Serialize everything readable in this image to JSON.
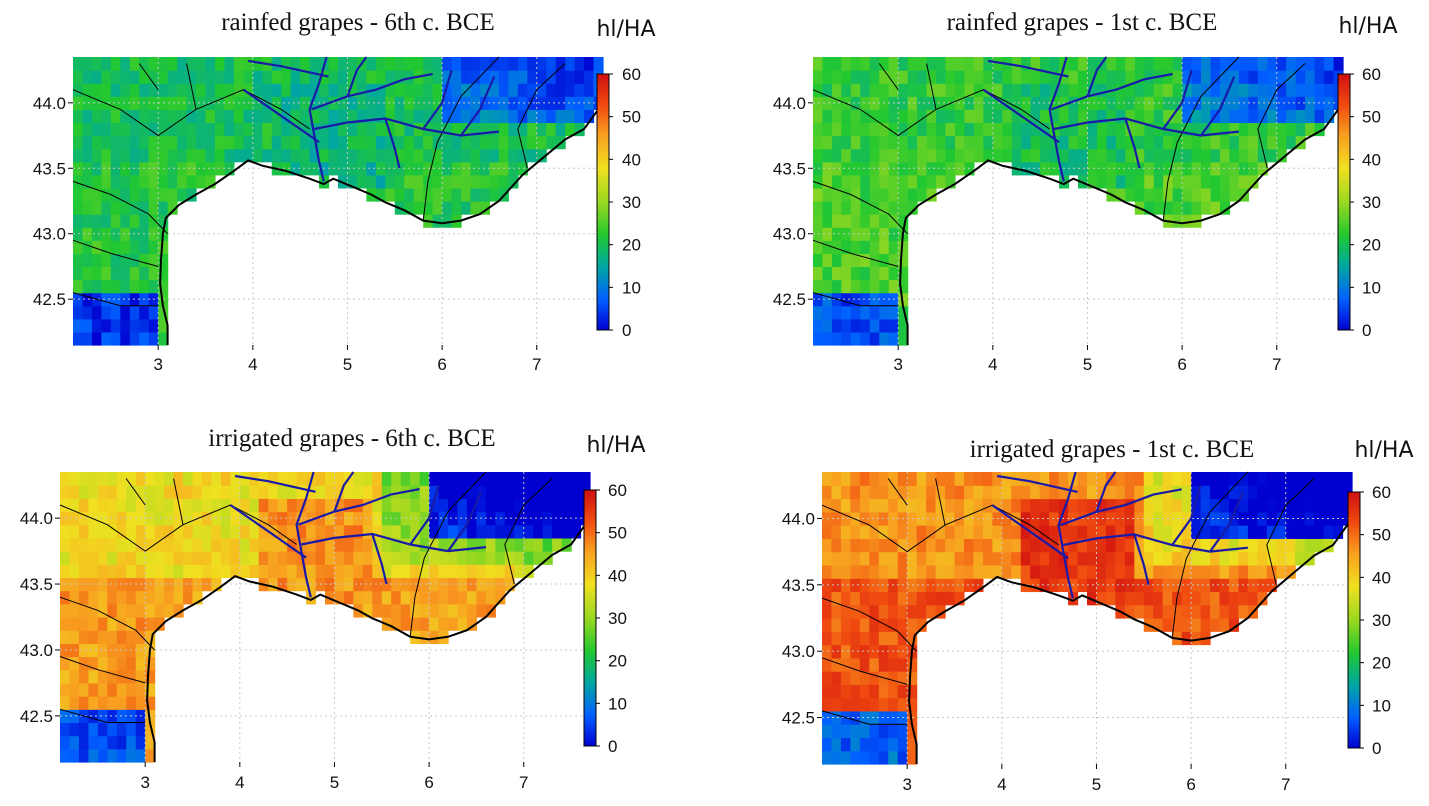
{
  "chart_data": [
    {
      "type": "heatmap",
      "title": "rainfed grapes - 6th c. BCE",
      "colorbar_label": "hl/HA",
      "colorbar_range": [
        0,
        60
      ],
      "colorbar_ticks": [
        "0",
        "10",
        "20",
        "30",
        "40",
        "50",
        "60"
      ],
      "xlim": [
        2.1,
        7.7
      ],
      "ylim": [
        42.15,
        44.35
      ],
      "x_ticks": [
        "3",
        "4",
        "5",
        "6",
        "7"
      ],
      "y_ticks": [
        "42.5",
        "43.0",
        "43.5",
        "44.0"
      ],
      "grid": true,
      "value_summary": {
        "coast_lowland": 22,
        "inland_west": 20,
        "rhone_valley": 18,
        "alps_northeast": 3,
        "pyrenees_southwest": 4
      }
    },
    {
      "type": "heatmap",
      "title": "rainfed grapes - 1st c. BCE",
      "colorbar_label": "hl/HA",
      "colorbar_range": [
        0,
        60
      ],
      "colorbar_ticks": [
        "0",
        "10",
        "20",
        "30",
        "40",
        "50",
        "60"
      ],
      "xlim": [
        2.1,
        7.7
      ],
      "ylim": [
        42.15,
        44.35
      ],
      "x_ticks": [
        "3",
        "4",
        "5",
        "6",
        "7"
      ],
      "y_ticks": [
        "42.5",
        "43.0",
        "43.5",
        "44.0"
      ],
      "grid": true,
      "value_summary": {
        "coast_lowland": 25,
        "inland_west": 23,
        "rhone_valley": 20,
        "alps_northeast": 4,
        "pyrenees_southwest": 6
      }
    },
    {
      "type": "heatmap",
      "title": "irrigated grapes - 6th c. BCE",
      "colorbar_label": "hl/HA",
      "colorbar_range": [
        0,
        60
      ],
      "colorbar_ticks": [
        "0",
        "10",
        "20",
        "30",
        "40",
        "50",
        "60"
      ],
      "xlim": [
        2.1,
        7.7
      ],
      "ylim": [
        42.15,
        44.35
      ],
      "x_ticks": [
        "3",
        "4",
        "5",
        "6",
        "7"
      ],
      "y_ticks": [
        "42.5",
        "43.0",
        "43.5",
        "44.0"
      ],
      "grid": true,
      "value_summary": {
        "coast_lowland": 45,
        "inland_west": 38,
        "rhone_valley": 46,
        "alps_northeast": 5,
        "pyrenees_southwest": 6
      }
    },
    {
      "type": "heatmap",
      "title": "irrigated grapes - 1st c. BCE",
      "colorbar_label": "hl/HA",
      "colorbar_range": [
        0,
        60
      ],
      "colorbar_ticks": [
        "0",
        "10",
        "20",
        "30",
        "40",
        "50",
        "60"
      ],
      "xlim": [
        2.1,
        7.7
      ],
      "ylim": [
        42.15,
        44.35
      ],
      "x_ticks": [
        "3",
        "4",
        "5",
        "6",
        "7"
      ],
      "y_ticks": [
        "42.5",
        "43.0",
        "43.5",
        "44.0"
      ],
      "grid": true,
      "value_summary": {
        "coast_lowland": 52,
        "inland_west": 46,
        "rhone_valley": 55,
        "alps_northeast": 6,
        "pyrenees_southwest": 8
      }
    }
  ],
  "colors": {
    "river": "#1a1aa8",
    "border": "#000000",
    "colormap": [
      "#0000d0",
      "#0060ff",
      "#00a8a0",
      "#22c830",
      "#9ad820",
      "#f0e020",
      "#f8a020",
      "#f04a10",
      "#d01010"
    ]
  }
}
